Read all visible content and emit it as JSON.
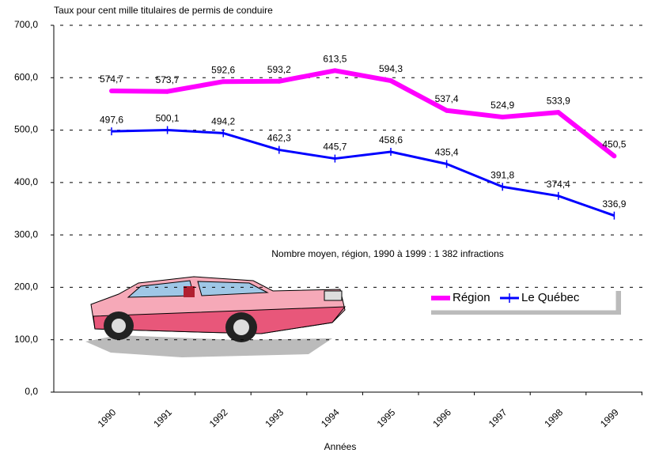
{
  "chart_data": {
    "type": "line",
    "y_axis_title": "Taux pour cent mille titulaires de permis de conduire",
    "x_axis_title": "Années",
    "annotation": "Nombre moyen, région,  1990 à 1999 :  1 382 infractions",
    "categories": [
      "1990",
      "1991",
      "1992",
      "1993",
      "1994",
      "1995",
      "1996",
      "1997",
      "1998",
      "1999"
    ],
    "series": [
      {
        "name": "Région",
        "color": "#ff00ff",
        "values": [
          574.7,
          573.7,
          592.6,
          593.2,
          613.5,
          594.3,
          537.4,
          524.9,
          533.9,
          450.5
        ],
        "value_labels": [
          "574,7",
          "573,7",
          "592,6",
          "593,2",
          "613,5",
          "594,3",
          "537,4",
          "524,9",
          "533,9",
          "450,5"
        ]
      },
      {
        "name": "Le Québec",
        "color": "#0000ff",
        "values": [
          497.6,
          500.1,
          494.2,
          462.3,
          445.7,
          458.6,
          435.4,
          391.8,
          374.4,
          336.9
        ],
        "value_labels": [
          "497,6",
          "500,1",
          "494,2",
          "462,3",
          "445,7",
          "458,6",
          "435,4",
          "391,8",
          "374,4",
          "336,9"
        ]
      }
    ],
    "ylim": [
      0,
      700
    ],
    "yticks": [
      {
        "value": 0,
        "label": "0,0"
      },
      {
        "value": 100,
        "label": "100,0"
      },
      {
        "value": 200,
        "label": "200,0"
      },
      {
        "value": 300,
        "label": "300,0"
      },
      {
        "value": 400,
        "label": "400,0"
      },
      {
        "value": 500,
        "label": "500,0"
      },
      {
        "value": 600,
        "label": "600,0"
      },
      {
        "value": 700,
        "label": "700,0"
      }
    ],
    "grid": true
  }
}
